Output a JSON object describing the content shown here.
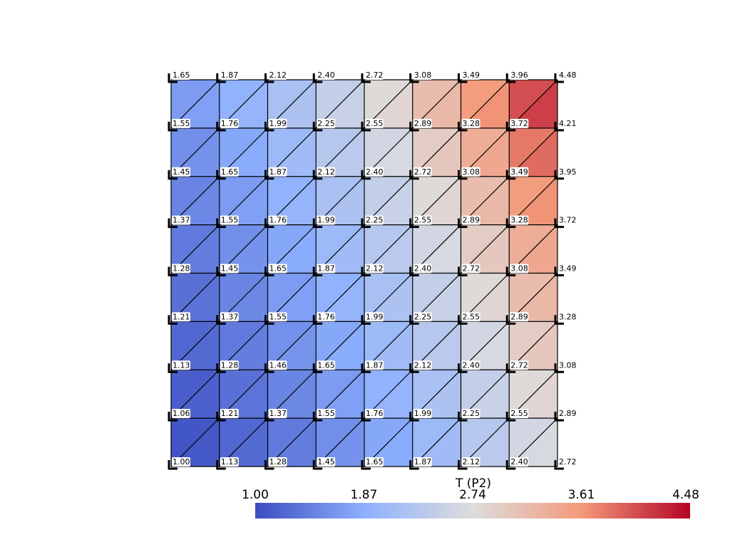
{
  "chart_data": {
    "type": "mesh",
    "title": "T (P2)",
    "colormap": [
      "#3b4cc0",
      "#8db0fe",
      "#dddddd",
      "#f49a7b",
      "#b40426"
    ],
    "values": [
      [
        1.65,
        1.87,
        2.12,
        2.4,
        2.72,
        3.08,
        3.49,
        3.96,
        4.48
      ],
      [
        1.55,
        1.76,
        1.99,
        2.25,
        2.55,
        2.89,
        3.28,
        3.72,
        4.21
      ],
      [
        1.45,
        1.65,
        1.87,
        2.12,
        2.4,
        2.72,
        3.08,
        3.49,
        3.95
      ],
      [
        1.37,
        1.55,
        1.76,
        1.99,
        2.25,
        2.55,
        2.89,
        3.28,
        3.72
      ],
      [
        1.28,
        1.45,
        1.65,
        1.87,
        2.12,
        2.4,
        2.72,
        3.08,
        3.49
      ],
      [
        1.21,
        1.37,
        1.55,
        1.76,
        1.99,
        2.25,
        2.55,
        2.89,
        3.28
      ],
      [
        1.13,
        1.28,
        1.46,
        1.65,
        1.87,
        2.12,
        2.4,
        2.72,
        3.08
      ],
      [
        1.06,
        1.21,
        1.37,
        1.55,
        1.76,
        1.99,
        2.25,
        2.55,
        2.89
      ],
      [
        1.0,
        1.13,
        1.28,
        1.45,
        1.65,
        1.87,
        2.12,
        2.4,
        2.72
      ]
    ],
    "value_labels": [
      [
        "1.65",
        "1.87",
        "2.12",
        "2.40",
        "2.72",
        "3.08",
        "3.49",
        "3.96",
        "4.48"
      ],
      [
        "1.55",
        "1.76",
        "1.99",
        "2.25",
        "2.55",
        "2.89",
        "3.28",
        "3.72",
        "4.21"
      ],
      [
        "1.45",
        "1.65",
        "1.87",
        "2.12",
        "2.40",
        "2.72",
        "3.08",
        "3.49",
        "3.95"
      ],
      [
        "1.37",
        "1.55",
        "1.76",
        "1.99",
        "2.25",
        "2.55",
        "2.89",
        "3.28",
        "3.72"
      ],
      [
        "1.28",
        "1.45",
        "1.65",
        "1.87",
        "2.12",
        "2.40",
        "2.72",
        "3.08",
        "3.49"
      ],
      [
        "1.21",
        "1.37",
        "1.55",
        "1.76",
        "1.99",
        "2.25",
        "2.55",
        "2.89",
        "3.28"
      ],
      [
        "1.13",
        "1.28",
        "1.46",
        "1.65",
        "1.87",
        "2.12",
        "2.40",
        "2.72",
        "3.08"
      ],
      [
        "1.06",
        "1.21",
        "1.37",
        "1.55",
        "1.76",
        "1.99",
        "2.25",
        "2.55",
        "2.89"
      ],
      [
        "1.00",
        "1.13",
        "1.28",
        "1.45",
        "1.65",
        "1.87",
        "2.12",
        "2.40",
        "2.72"
      ]
    ],
    "clim": [
      1.0,
      4.48
    ],
    "cticks": [
      {
        "value": 1.0,
        "label": "1.00"
      },
      1.87,
      2.74,
      3.61,
      4.48
    ]
  }
}
